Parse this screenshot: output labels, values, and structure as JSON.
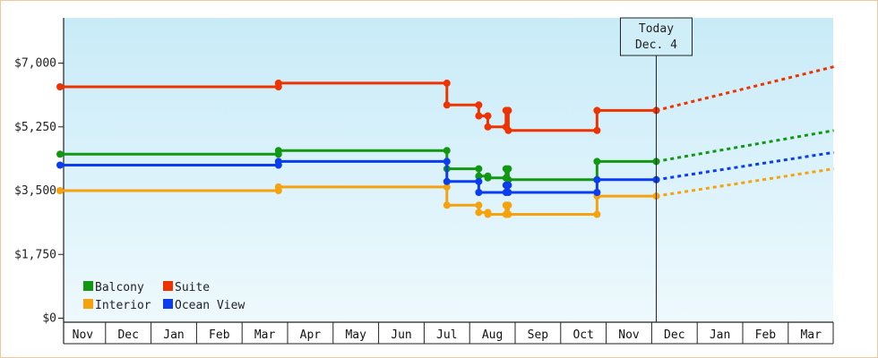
{
  "chart_data": {
    "type": "line",
    "title": "",
    "xlabel": "",
    "ylabel": "",
    "ylim": [
      0,
      8000
    ],
    "y_ticks": [
      {
        "value": 0,
        "label": "$0"
      },
      {
        "value": 1750,
        "label": "$1,750"
      },
      {
        "value": 3500,
        "label": "$3,500"
      },
      {
        "value": 5250,
        "label": "$5,250"
      },
      {
        "value": 7000,
        "label": "$7,000"
      }
    ],
    "months": [
      "Nov",
      "Dec",
      "Jan",
      "Feb",
      "Mar",
      "Apr",
      "May",
      "Jun",
      "Jul",
      "Aug",
      "Sep",
      "Oct",
      "Nov",
      "Dec",
      "Jan",
      "Feb",
      "Mar"
    ],
    "x_range": [
      0,
      17
    ],
    "today": {
      "x": 13.1,
      "line1": "Today",
      "line2": "Dec. 4"
    },
    "grid": false,
    "legend_position": "bottom-left",
    "series": [
      {
        "name": "Balcony",
        "color": "#129712",
        "points": [
          [
            0,
            4500
          ],
          [
            4.8,
            4500
          ],
          [
            4.8,
            4600
          ],
          [
            8.5,
            4600
          ],
          [
            8.5,
            4100
          ],
          [
            9.2,
            4100
          ],
          [
            9.2,
            3900
          ],
          [
            9.4,
            3900
          ],
          [
            9.4,
            3850
          ],
          [
            9.8,
            3850
          ],
          [
            9.8,
            4100
          ],
          [
            9.85,
            4100
          ],
          [
            9.85,
            3800
          ],
          [
            11.8,
            3800
          ],
          [
            11.8,
            4300
          ],
          [
            13.1,
            4300
          ]
        ],
        "projection": [
          [
            13.1,
            4300
          ],
          [
            17,
            5150
          ]
        ]
      },
      {
        "name": "Suite",
        "color": "#ee3300",
        "points": [
          [
            0,
            6350
          ],
          [
            4.8,
            6350
          ],
          [
            4.8,
            6450
          ],
          [
            8.5,
            6450
          ],
          [
            8.5,
            5850
          ],
          [
            9.2,
            5850
          ],
          [
            9.2,
            5550
          ],
          [
            9.4,
            5550
          ],
          [
            9.4,
            5250
          ],
          [
            9.8,
            5250
          ],
          [
            9.8,
            5700
          ],
          [
            9.85,
            5700
          ],
          [
            9.85,
            5150
          ],
          [
            11.8,
            5150
          ],
          [
            11.8,
            5700
          ],
          [
            13.1,
            5700
          ]
        ],
        "projection": [
          [
            13.1,
            5700
          ],
          [
            17,
            6900
          ]
        ]
      },
      {
        "name": "Interior",
        "color": "#f5a20c",
        "points": [
          [
            0,
            3500
          ],
          [
            4.8,
            3500
          ],
          [
            4.8,
            3600
          ],
          [
            8.5,
            3600
          ],
          [
            8.5,
            3100
          ],
          [
            9.2,
            3100
          ],
          [
            9.2,
            2900
          ],
          [
            9.4,
            2900
          ],
          [
            9.4,
            2850
          ],
          [
            9.8,
            2850
          ],
          [
            9.8,
            3100
          ],
          [
            9.85,
            3100
          ],
          [
            9.85,
            2850
          ],
          [
            11.8,
            2850
          ],
          [
            11.8,
            3350
          ],
          [
            13.1,
            3350
          ]
        ],
        "projection": [
          [
            13.1,
            3350
          ],
          [
            17,
            4100
          ]
        ]
      },
      {
        "name": "Ocean View",
        "color": "#0a3cf0",
        "points": [
          [
            0,
            4200
          ],
          [
            4.8,
            4200
          ],
          [
            4.8,
            4300
          ],
          [
            8.5,
            4300
          ],
          [
            8.5,
            3750
          ],
          [
            9.2,
            3750
          ],
          [
            9.2,
            3450
          ],
          [
            9.8,
            3450
          ],
          [
            9.8,
            3650
          ],
          [
            9.85,
            3650
          ],
          [
            9.85,
            3450
          ],
          [
            11.8,
            3450
          ],
          [
            11.8,
            3800
          ],
          [
            13.1,
            3800
          ]
        ],
        "projection": [
          [
            13.1,
            3800
          ],
          [
            17,
            4550
          ]
        ]
      }
    ]
  }
}
